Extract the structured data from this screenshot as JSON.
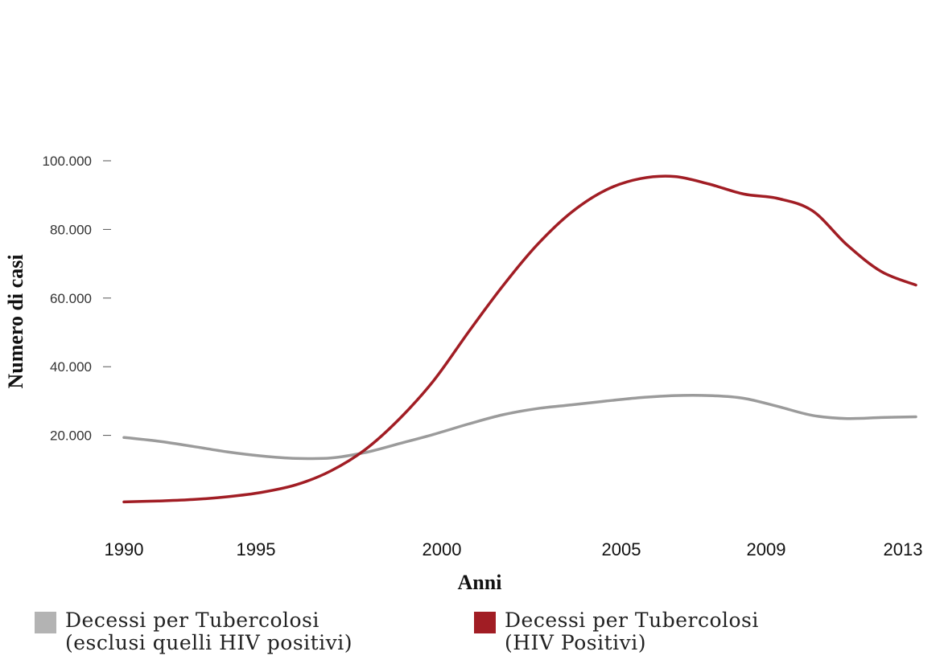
{
  "chart_data": {
    "type": "line",
    "title": "",
    "xlabel": "Anni",
    "ylabel": "Numero di casi",
    "x_tick_labels": [
      "1990",
      "1995",
      "2000",
      "2005",
      "2009",
      "2013"
    ],
    "y_tick_labels": [
      "20.000",
      "40.000",
      "60.000",
      "80.000",
      "100.000"
    ],
    "y_ticks": [
      20000,
      40000,
      60000,
      80000,
      100000
    ],
    "xlim": [
      1990,
      2013
    ],
    "ylim": [
      0,
      100000
    ],
    "grid": false,
    "legend_position": "bottom",
    "series": [
      {
        "key": "hiv_negative",
        "legend_line1": "Decessi per Tubercolosi",
        "legend_line2": "(esclusi quelli HIV positivi)",
        "color": "#9b9b9b",
        "x": [
          1990,
          1991,
          1992,
          1993,
          1994,
          1995,
          1996,
          1997,
          1998,
          1999,
          2000,
          2001,
          2002,
          2003,
          2004,
          2005,
          2006,
          2007,
          2008,
          2009,
          2010,
          2011,
          2012,
          2013
        ],
        "y": [
          19400,
          18300,
          16800,
          15200,
          14000,
          13300,
          13400,
          15000,
          17600,
          20300,
          23300,
          26000,
          27800,
          28900,
          30000,
          31000,
          31600,
          31600,
          30800,
          28400,
          25800,
          24900,
          25200,
          25400
        ]
      },
      {
        "key": "hiv_positive",
        "legend_line1": "Decessi per Tubercolosi",
        "legend_line2": "(HIV Positivi)",
        "color": "#a11d24",
        "x": [
          1990,
          1991,
          1992,
          1993,
          1994,
          1995,
          1996,
          1997,
          1998,
          1999,
          2000,
          2001,
          2002,
          2003,
          2004,
          2005,
          2006,
          2007,
          2008,
          2009,
          2010,
          2011,
          2012,
          2013
        ],
        "y": [
          600,
          900,
          1300,
          2100,
          3400,
          5600,
          9600,
          15800,
          24800,
          36000,
          50000,
          63500,
          75500,
          85000,
          91500,
          94800,
          95400,
          93200,
          90300,
          89000,
          85400,
          75500,
          67700,
          63800
        ]
      }
    ]
  }
}
